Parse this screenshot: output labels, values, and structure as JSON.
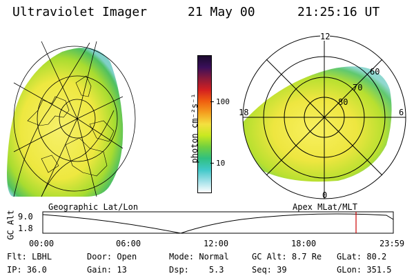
{
  "header": {
    "instrument": "Ultraviolet Imager",
    "date": "21 May 00",
    "time": "21:25:16 UT"
  },
  "colorbar": {
    "unit_label": "photon cm⁻²s⁻¹",
    "ticks": [
      "100",
      "10"
    ],
    "colors": [
      "#1b0b2e",
      "#3a0f5a",
      "#8a1a3a",
      "#d42020",
      "#f06010",
      "#f4a020",
      "#f4e040",
      "#c8e820",
      "#70d040",
      "#30c080",
      "#40c8c8",
      "#a0e0e8",
      "#ffffff"
    ]
  },
  "left_map": {
    "title": "Geographic Lat/Lon"
  },
  "right_map": {
    "title": "Apex MLat/MLT",
    "mlt_labels": {
      "top": "12",
      "left": "18",
      "right": "6",
      "bottom": "0"
    },
    "lat_labels": [
      "60",
      "70",
      "80"
    ]
  },
  "altitude_plot": {
    "ylabel": "GC Alt",
    "yticks": [
      "9.0",
      "1.8"
    ],
    "xticks": [
      "00:00",
      "06:00",
      "12:00",
      "18:00",
      "23:59"
    ],
    "marker_color": "#cc0000"
  },
  "status": {
    "row1": [
      {
        "label": "Flt:",
        "value": "LBHL"
      },
      {
        "label": "Door:",
        "value": "Open"
      },
      {
        "label": "Mode:",
        "value": "Normal"
      },
      {
        "label": "GC Alt:",
        "value": "8.7 Re"
      },
      {
        "label": "GLat:",
        "value": "80.2"
      }
    ],
    "row2": [
      {
        "label": "IP:",
        "value": "36.0"
      },
      {
        "label": "Gain:",
        "value": "13"
      },
      {
        "label": "Dsp:",
        "value": "5.3"
      },
      {
        "label": "Seq:",
        "value": "39"
      },
      {
        "label": "GLon:",
        "value": "351.5"
      }
    ]
  }
}
